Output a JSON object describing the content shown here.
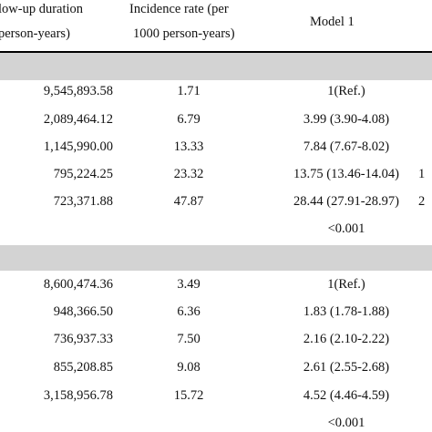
{
  "headers": {
    "col1_line1": "low-up duration",
    "col1_line2": "person-years)",
    "col2_line1": "Incidence rate (per",
    "col2_line2": "1000 person-years)",
    "col3": "Model 1"
  },
  "section1": {
    "rows": [
      {
        "duration": "9,545,893.58",
        "rate": "1.71",
        "model1": "1(Ref.)",
        "extra": ""
      },
      {
        "duration": "2,089,464.12",
        "rate": "6.79",
        "model1": "3.99 (3.90-4.08)",
        "extra": ""
      },
      {
        "duration": "1,145,990.00",
        "rate": "13.33",
        "model1": "7.84 (7.67-8.02)",
        "extra": ""
      },
      {
        "duration": "795,224.25",
        "rate": "23.32",
        "model1": "13.75 (13.46-14.04)",
        "extra": "1"
      },
      {
        "duration": "723,371.88",
        "rate": "47.87",
        "model1": "28.44 (27.91-28.97)",
        "extra": "2"
      }
    ],
    "p_value": "<0.001"
  },
  "section2": {
    "rows": [
      {
        "duration": "8,600,474.36",
        "rate": "3.49",
        "model1": "1(Ref.)",
        "extra": ""
      },
      {
        "duration": "948,366.50",
        "rate": "6.36",
        "model1": "1.83 (1.78-1.88)",
        "extra": ""
      },
      {
        "duration": "736,937.33",
        "rate": "7.50",
        "model1": "2.16 (2.10-2.22)",
        "extra": ""
      },
      {
        "duration": "855,208.85",
        "rate": "9.08",
        "model1": "2.61 (2.55-2.68)",
        "extra": ""
      },
      {
        "duration": "3,158,956.78",
        "rate": "15.72",
        "model1": "4.52 (4.46-4.59)",
        "extra": ""
      }
    ],
    "p_value": "<0.001"
  }
}
